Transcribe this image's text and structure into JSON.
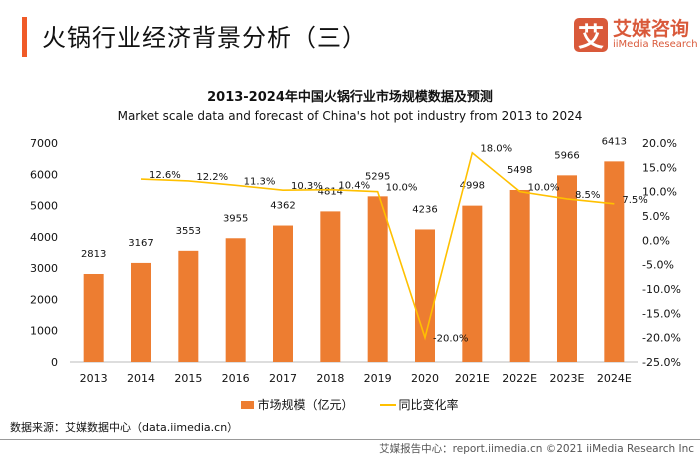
{
  "header": {
    "title": "火锅行业经济背景分析（三）",
    "logo_mark": "艾",
    "logo_cn": "艾媒咨询",
    "logo_en": "iiMedia Research"
  },
  "chart_data": {
    "type": "bar+line",
    "title": "2013-2024年中国火锅行业市场规模数据及预测",
    "subtitle": "Market scale data and forecast of China's hot pot industry from 2013 to 2024",
    "categories": [
      "2013",
      "2014",
      "2015",
      "2016",
      "2017",
      "2018",
      "2019",
      "2020",
      "2021E",
      "2022E",
      "2023E",
      "2024E"
    ],
    "series": [
      {
        "name": "市场规模（亿元）",
        "type": "bar",
        "axis": "left",
        "color": "#ED7D31",
        "values": [
          2813,
          3167,
          3553,
          3955,
          4362,
          4814,
          5295,
          4236,
          4998,
          5498,
          5966,
          6413
        ]
      },
      {
        "name": "同比变化率",
        "type": "line",
        "axis": "right",
        "color": "#FFC000",
        "values": [
          null,
          12.6,
          12.2,
          11.3,
          10.3,
          10.4,
          10.0,
          -20.0,
          18.0,
          10.0,
          8.5,
          7.5
        ]
      }
    ],
    "y_left": {
      "min": 0,
      "max": 7000,
      "step": 1000
    },
    "y_right": {
      "min": -25,
      "max": 20,
      "step": 5,
      "format": "percent"
    },
    "grid": false,
    "legend": "bottom"
  },
  "footer": {
    "source": "数据来源：艾媒数据中心（data.iimedia.cn）",
    "copyright": "艾媒报告中心：report.iimedia.cn   ©2021  iiMedia Research  Inc"
  }
}
